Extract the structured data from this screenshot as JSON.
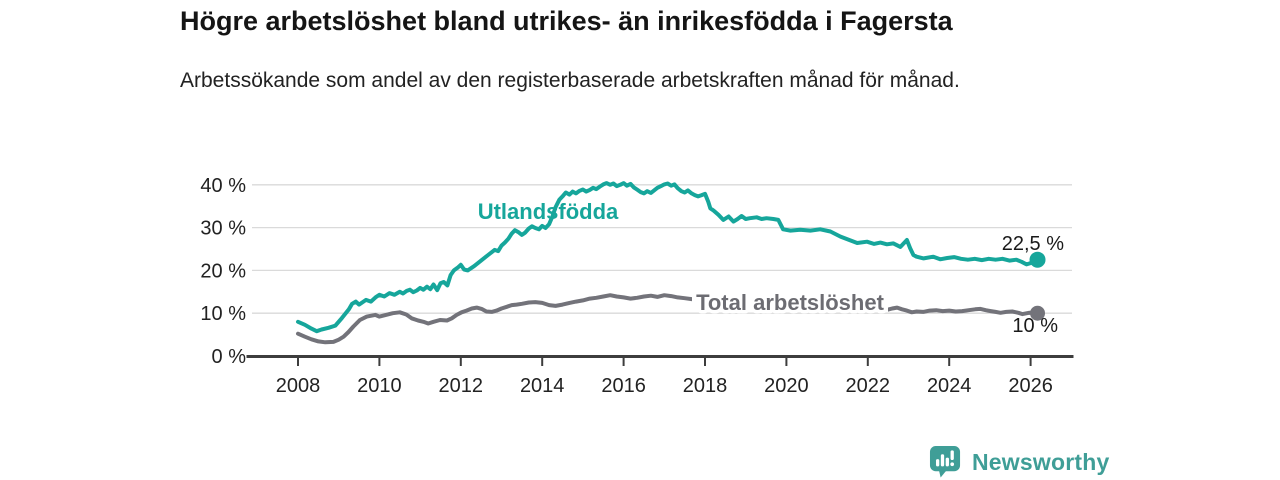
{
  "chart_data": {
    "type": "line",
    "title": "Högre arbetslöshet bland utrikes- än inrikesfödda i Fagersta",
    "subtitle": "Arbetssökande som andel av den registerbaserade arbetskraften månad för månad.",
    "x_axis": {
      "range": [
        2008,
        2026.17
      ],
      "ticks": [
        {
          "value": 2008,
          "label": "2008"
        },
        {
          "value": 2010,
          "label": "2010"
        },
        {
          "value": 2012,
          "label": "2012"
        },
        {
          "value": 2014,
          "label": "2014"
        },
        {
          "value": 2016,
          "label": "2016"
        },
        {
          "value": 2018,
          "label": "2018"
        },
        {
          "value": 2020,
          "label": "2020"
        },
        {
          "value": 2022,
          "label": "2022"
        },
        {
          "value": 2024,
          "label": "2024"
        },
        {
          "value": 2026,
          "label": "2026"
        }
      ],
      "grid": false
    },
    "y_axis": {
      "range": [
        0,
        43
      ],
      "unit": "%",
      "grid": true,
      "ticks": [
        {
          "value": 0,
          "label": "0 %"
        },
        {
          "value": 10,
          "label": "10 %"
        },
        {
          "value": 20,
          "label": "20 %"
        },
        {
          "value": 30,
          "label": "30 %"
        },
        {
          "value": 40,
          "label": "40 %"
        }
      ]
    },
    "legend": "inline-labels",
    "series": [
      {
        "name": "Utlandsfödda",
        "color": "#16a69b",
        "end_value": 22.5,
        "end_label": "22,5 %",
        "points": [
          [
            2008.0,
            8.0
          ],
          [
            2008.17,
            7.3
          ],
          [
            2008.33,
            6.4
          ],
          [
            2008.46,
            5.8
          ],
          [
            2008.58,
            6.2
          ],
          [
            2008.75,
            6.6
          ],
          [
            2008.92,
            7.1
          ],
          [
            2009.08,
            8.9
          ],
          [
            2009.25,
            10.9
          ],
          [
            2009.33,
            12.2
          ],
          [
            2009.42,
            12.7
          ],
          [
            2009.5,
            12.0
          ],
          [
            2009.67,
            13.1
          ],
          [
            2009.79,
            12.7
          ],
          [
            2009.92,
            13.8
          ],
          [
            2010.0,
            14.3
          ],
          [
            2010.12,
            13.9
          ],
          [
            2010.25,
            14.7
          ],
          [
            2010.37,
            14.3
          ],
          [
            2010.5,
            15.0
          ],
          [
            2010.58,
            14.6
          ],
          [
            2010.67,
            15.2
          ],
          [
            2010.75,
            15.5
          ],
          [
            2010.83,
            14.9
          ],
          [
            2010.92,
            15.3
          ],
          [
            2011.0,
            15.9
          ],
          [
            2011.08,
            15.5
          ],
          [
            2011.17,
            16.2
          ],
          [
            2011.25,
            15.6
          ],
          [
            2011.33,
            16.7
          ],
          [
            2011.42,
            15.4
          ],
          [
            2011.5,
            17.0
          ],
          [
            2011.58,
            17.3
          ],
          [
            2011.67,
            16.5
          ],
          [
            2011.75,
            18.9
          ],
          [
            2011.83,
            20.0
          ],
          [
            2011.92,
            20.6
          ],
          [
            2012.0,
            21.3
          ],
          [
            2012.08,
            20.2
          ],
          [
            2012.17,
            20.0
          ],
          [
            2012.33,
            21.0
          ],
          [
            2012.5,
            22.3
          ],
          [
            2012.67,
            23.6
          ],
          [
            2012.83,
            24.8
          ],
          [
            2012.92,
            24.5
          ],
          [
            2013.0,
            25.8
          ],
          [
            2013.08,
            26.5
          ],
          [
            2013.17,
            27.4
          ],
          [
            2013.25,
            28.6
          ],
          [
            2013.33,
            29.4
          ],
          [
            2013.42,
            28.9
          ],
          [
            2013.5,
            28.3
          ],
          [
            2013.58,
            28.8
          ],
          [
            2013.67,
            29.8
          ],
          [
            2013.75,
            30.3
          ],
          [
            2013.83,
            29.9
          ],
          [
            2013.92,
            29.6
          ],
          [
            2014.0,
            30.4
          ],
          [
            2014.08,
            29.9
          ],
          [
            2014.17,
            30.8
          ],
          [
            2014.25,
            32.6
          ],
          [
            2014.33,
            34.8
          ],
          [
            2014.42,
            36.5
          ],
          [
            2014.5,
            37.3
          ],
          [
            2014.58,
            38.2
          ],
          [
            2014.67,
            37.7
          ],
          [
            2014.75,
            38.4
          ],
          [
            2014.83,
            38.0
          ],
          [
            2014.92,
            38.6
          ],
          [
            2015.0,
            38.9
          ],
          [
            2015.08,
            38.4
          ],
          [
            2015.17,
            38.8
          ],
          [
            2015.25,
            39.3
          ],
          [
            2015.33,
            39.0
          ],
          [
            2015.42,
            39.6
          ],
          [
            2015.5,
            40.1
          ],
          [
            2015.58,
            40.4
          ],
          [
            2015.67,
            40.0
          ],
          [
            2015.75,
            40.3
          ],
          [
            2015.83,
            39.7
          ],
          [
            2015.92,
            40.0
          ],
          [
            2016.0,
            40.4
          ],
          [
            2016.08,
            39.8
          ],
          [
            2016.17,
            40.2
          ],
          [
            2016.25,
            39.4
          ],
          [
            2016.33,
            38.9
          ],
          [
            2016.42,
            38.3
          ],
          [
            2016.5,
            38.0
          ],
          [
            2016.58,
            38.5
          ],
          [
            2016.67,
            38.1
          ],
          [
            2016.75,
            38.7
          ],
          [
            2016.83,
            39.3
          ],
          [
            2016.92,
            39.7
          ],
          [
            2017.0,
            40.1
          ],
          [
            2017.08,
            40.3
          ],
          [
            2017.17,
            39.8
          ],
          [
            2017.25,
            40.1
          ],
          [
            2017.33,
            39.2
          ],
          [
            2017.42,
            38.5
          ],
          [
            2017.5,
            38.2
          ],
          [
            2017.58,
            38.7
          ],
          [
            2017.67,
            38.0
          ],
          [
            2017.75,
            37.6
          ],
          [
            2017.83,
            37.3
          ],
          [
            2017.92,
            37.6
          ],
          [
            2018.0,
            37.9
          ],
          [
            2018.08,
            36.0
          ],
          [
            2018.13,
            34.5
          ],
          [
            2018.21,
            34.0
          ],
          [
            2018.33,
            33.0
          ],
          [
            2018.45,
            31.8
          ],
          [
            2018.58,
            32.6
          ],
          [
            2018.7,
            31.4
          ],
          [
            2018.8,
            32.0
          ],
          [
            2018.9,
            32.7
          ],
          [
            2019.0,
            32.0
          ],
          [
            2019.1,
            32.2
          ],
          [
            2019.27,
            32.4
          ],
          [
            2019.39,
            32.0
          ],
          [
            2019.51,
            32.2
          ],
          [
            2019.68,
            32.0
          ],
          [
            2019.8,
            31.8
          ],
          [
            2019.92,
            29.6
          ],
          [
            2020.1,
            29.3
          ],
          [
            2020.34,
            29.5
          ],
          [
            2020.59,
            29.3
          ],
          [
            2020.83,
            29.6
          ],
          [
            2021.08,
            29.1
          ],
          [
            2021.33,
            27.9
          ],
          [
            2021.57,
            27.0
          ],
          [
            2021.74,
            26.4
          ],
          [
            2021.98,
            26.7
          ],
          [
            2022.15,
            26.2
          ],
          [
            2022.31,
            26.5
          ],
          [
            2022.47,
            26.1
          ],
          [
            2022.63,
            26.3
          ],
          [
            2022.8,
            25.5
          ],
          [
            2022.96,
            27.1
          ],
          [
            2023.04,
            25.2
          ],
          [
            2023.12,
            23.6
          ],
          [
            2023.2,
            23.2
          ],
          [
            2023.37,
            22.8
          ],
          [
            2023.61,
            23.2
          ],
          [
            2023.78,
            22.6
          ],
          [
            2023.95,
            22.9
          ],
          [
            2024.12,
            23.1
          ],
          [
            2024.29,
            22.7
          ],
          [
            2024.46,
            22.5
          ],
          [
            2024.63,
            22.7
          ],
          [
            2024.8,
            22.4
          ],
          [
            2024.97,
            22.7
          ],
          [
            2025.14,
            22.5
          ],
          [
            2025.31,
            22.7
          ],
          [
            2025.48,
            22.3
          ],
          [
            2025.65,
            22.5
          ],
          [
            2025.78,
            22.0
          ],
          [
            2025.9,
            21.4
          ],
          [
            2026.0,
            21.7
          ],
          [
            2026.17,
            22.5
          ]
        ]
      },
      {
        "name": "Total arbetslöshet",
        "color": "#73737a",
        "label_color": "#6c6c72",
        "end_value": 10.0,
        "end_label": "10 %",
        "points": [
          [
            2008.0,
            5.2
          ],
          [
            2008.17,
            4.5
          ],
          [
            2008.33,
            3.9
          ],
          [
            2008.5,
            3.4
          ],
          [
            2008.67,
            3.2
          ],
          [
            2008.87,
            3.3
          ],
          [
            2009.0,
            3.8
          ],
          [
            2009.12,
            4.5
          ],
          [
            2009.24,
            5.6
          ],
          [
            2009.36,
            6.9
          ],
          [
            2009.52,
            8.4
          ],
          [
            2009.69,
            9.2
          ],
          [
            2009.9,
            9.6
          ],
          [
            2010.0,
            9.2
          ],
          [
            2010.16,
            9.6
          ],
          [
            2010.33,
            10.0
          ],
          [
            2010.5,
            10.2
          ],
          [
            2010.66,
            9.7
          ],
          [
            2010.79,
            8.8
          ],
          [
            2010.95,
            8.3
          ],
          [
            2011.08,
            8.0
          ],
          [
            2011.2,
            7.6
          ],
          [
            2011.33,
            8.0
          ],
          [
            2011.49,
            8.4
          ],
          [
            2011.66,
            8.3
          ],
          [
            2011.78,
            8.8
          ],
          [
            2011.9,
            9.6
          ],
          [
            2012.02,
            10.2
          ],
          [
            2012.14,
            10.6
          ],
          [
            2012.27,
            11.1
          ],
          [
            2012.39,
            11.3
          ],
          [
            2012.51,
            11.0
          ],
          [
            2012.63,
            10.4
          ],
          [
            2012.76,
            10.3
          ],
          [
            2012.88,
            10.6
          ],
          [
            2013.0,
            11.1
          ],
          [
            2013.13,
            11.5
          ],
          [
            2013.25,
            11.9
          ],
          [
            2013.37,
            12.0
          ],
          [
            2013.5,
            12.2
          ],
          [
            2013.67,
            12.5
          ],
          [
            2013.83,
            12.6
          ],
          [
            2014.0,
            12.4
          ],
          [
            2014.17,
            11.9
          ],
          [
            2014.33,
            11.7
          ],
          [
            2014.5,
            12.0
          ],
          [
            2014.67,
            12.4
          ],
          [
            2014.83,
            12.7
          ],
          [
            2015.0,
            13.0
          ],
          [
            2015.17,
            13.4
          ],
          [
            2015.33,
            13.6
          ],
          [
            2015.5,
            13.9
          ],
          [
            2015.67,
            14.2
          ],
          [
            2015.83,
            13.9
          ],
          [
            2016.0,
            13.7
          ],
          [
            2016.17,
            13.4
          ],
          [
            2016.33,
            13.6
          ],
          [
            2016.5,
            13.9
          ],
          [
            2016.67,
            14.1
          ],
          [
            2016.83,
            13.8
          ],
          [
            2017.0,
            14.2
          ],
          [
            2017.17,
            14.0
          ],
          [
            2017.33,
            13.7
          ],
          [
            2017.5,
            13.5
          ],
          [
            2017.67,
            13.3
          ],
          [
            2017.83,
            13.1
          ],
          [
            2018.0,
            13.0
          ],
          [
            2018.25,
            12.7
          ],
          [
            2018.5,
            12.5
          ],
          [
            2018.75,
            12.3
          ],
          [
            2019.0,
            12.1
          ],
          [
            2019.25,
            12.0
          ],
          [
            2019.5,
            11.9
          ],
          [
            2019.75,
            11.8
          ],
          [
            2020.0,
            12.1
          ],
          [
            2020.25,
            12.4
          ],
          [
            2020.5,
            12.5
          ],
          [
            2020.75,
            12.3
          ],
          [
            2021.0,
            12.1
          ],
          [
            2021.25,
            11.8
          ],
          [
            2021.5,
            11.5
          ],
          [
            2021.75,
            11.3
          ],
          [
            2022.0,
            11.1
          ],
          [
            2022.25,
            11.0
          ],
          [
            2022.48,
            10.8
          ],
          [
            2022.6,
            11.1
          ],
          [
            2022.72,
            11.3
          ],
          [
            2022.84,
            10.9
          ],
          [
            2022.96,
            10.6
          ],
          [
            2023.08,
            10.2
          ],
          [
            2023.2,
            10.4
          ],
          [
            2023.36,
            10.3
          ],
          [
            2023.52,
            10.6
          ],
          [
            2023.68,
            10.7
          ],
          [
            2023.84,
            10.5
          ],
          [
            2024.0,
            10.6
          ],
          [
            2024.16,
            10.4
          ],
          [
            2024.32,
            10.5
          ],
          [
            2024.48,
            10.7
          ],
          [
            2024.64,
            10.9
          ],
          [
            2024.77,
            11.0
          ],
          [
            2024.9,
            10.7
          ],
          [
            2025.02,
            10.5
          ],
          [
            2025.14,
            10.3
          ],
          [
            2025.26,
            10.1
          ],
          [
            2025.4,
            10.3
          ],
          [
            2025.55,
            10.4
          ],
          [
            2025.7,
            10.1
          ],
          [
            2025.8,
            9.8
          ],
          [
            2025.96,
            10.1
          ],
          [
            2026.17,
            10.0
          ]
        ]
      }
    ]
  },
  "footer": {
    "brand": "Newsworthy"
  },
  "colors": {
    "accent_teal": "#16a69b",
    "line_gray": "#73737a",
    "grid": "#dadada",
    "axis": "#3d3d3d",
    "text": "#222222",
    "title": "#151515",
    "logo_teal": "#3f9e97"
  }
}
